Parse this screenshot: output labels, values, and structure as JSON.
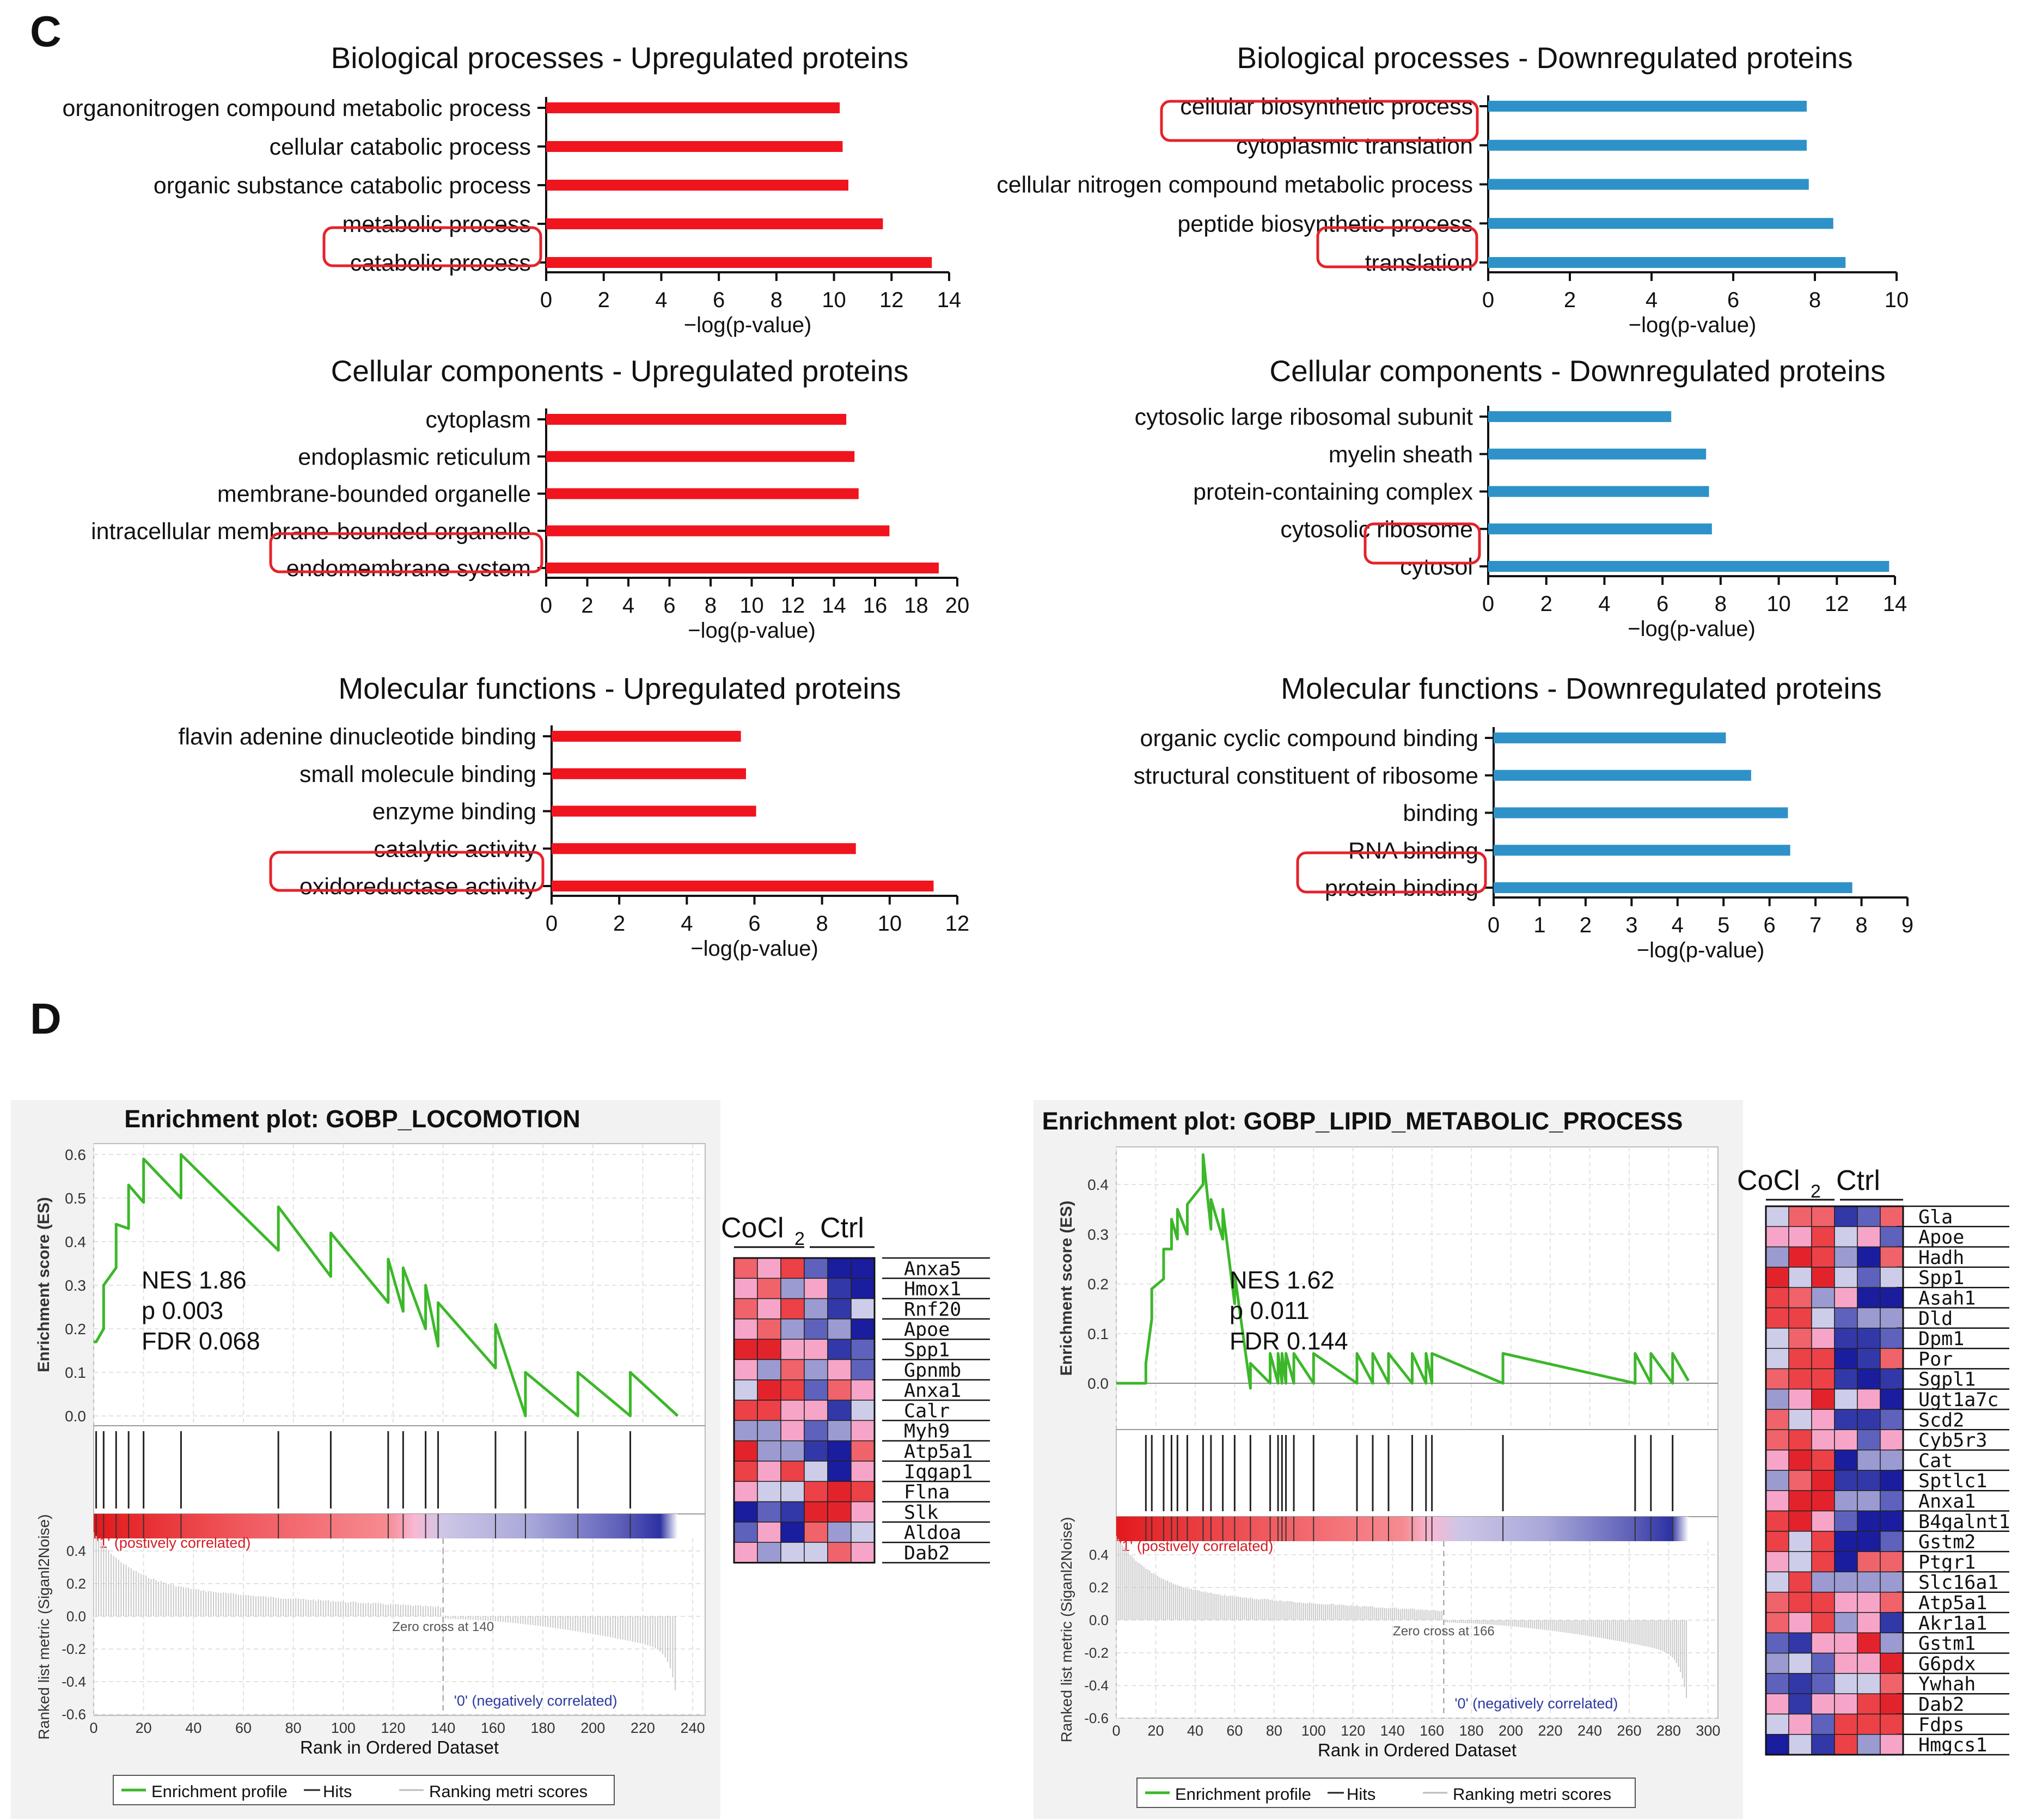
{
  "panels": {
    "C": "C",
    "D": "D"
  },
  "colors": {
    "up": "#f0141e",
    "down": "#2e92c9",
    "circle": "#e5222a",
    "green": "#3cb72a",
    "heat_red": "#e3232b",
    "heat_blue": "#1a1d9e"
  },
  "chart_data": [
    {
      "type": "bar",
      "orientation": "horizontal",
      "title": "Biological processes - Upregulated proteins",
      "xlabel": "−log(p-value)",
      "xlim": [
        0,
        14
      ],
      "ticks": [
        0,
        2,
        4,
        6,
        8,
        10,
        12,
        14
      ],
      "categories": [
        "organonitrogen compound metabolic process",
        "cellular catabolic process",
        "organic substance catabolic process",
        "metabolic process",
        "catabolic process"
      ],
      "values": [
        10.2,
        10.3,
        10.5,
        11.7,
        13.4
      ],
      "highlighted": [
        4
      ]
    },
    {
      "type": "bar",
      "orientation": "horizontal",
      "title": "Biological processes - Downregulated proteins",
      "xlabel": "−log(p-value)",
      "xlim": [
        0,
        10
      ],
      "ticks": [
        0,
        2,
        4,
        6,
        8,
        10
      ],
      "categories": [
        "cellular biosynthetic process",
        "cytoplasmic translation",
        "cellular nitrogen compound metabolic process",
        "peptide biosynthetic process",
        "translation"
      ],
      "values": [
        7.8,
        7.8,
        7.85,
        8.45,
        8.75
      ],
      "highlighted": [
        0,
        4
      ]
    },
    {
      "type": "bar",
      "orientation": "horizontal",
      "title": "Cellular components - Upregulated proteins",
      "xlabel": "−log(p-value)",
      "xlim": [
        0,
        20
      ],
      "ticks": [
        0,
        2,
        4,
        6,
        8,
        10,
        12,
        14,
        16,
        18,
        20
      ],
      "categories": [
        "cytoplasm",
        "endoplasmic reticulum",
        "membrane-bounded organelle",
        "intracellular membrane-bounded organelle",
        "endomembrane system"
      ],
      "values": [
        14.6,
        15.0,
        15.2,
        16.7,
        19.1
      ],
      "highlighted": [
        4
      ]
    },
    {
      "type": "bar",
      "orientation": "horizontal",
      "title": "Cellular components - Downregulated proteins",
      "xlabel": "−log(p-value)",
      "xlim": [
        0,
        14
      ],
      "ticks": [
        0,
        2,
        4,
        6,
        8,
        10,
        12,
        14
      ],
      "categories": [
        "cytosolic large ribosomal subunit",
        "myelin sheath",
        "protein-containing complex",
        "cytosolic ribosome",
        "cytosol"
      ],
      "values": [
        6.3,
        7.5,
        7.6,
        7.7,
        13.8
      ],
      "highlighted": [
        4
      ]
    },
    {
      "type": "bar",
      "orientation": "horizontal",
      "title": "Molecular functions - Upregulated proteins",
      "xlabel": "−log(p-value)",
      "xlim": [
        0,
        12
      ],
      "ticks": [
        0,
        2,
        4,
        6,
        8,
        10,
        12
      ],
      "categories": [
        "flavin adenine dinucleotide binding",
        "small molecule binding",
        "enzyme binding",
        "catalytic activity",
        "oxidoreductase activity"
      ],
      "values": [
        5.6,
        5.75,
        6.05,
        9.0,
        11.3
      ],
      "highlighted": [
        4
      ]
    },
    {
      "type": "bar",
      "orientation": "horizontal",
      "title": "Molecular functions - Downregulated proteins",
      "xlabel": "−log(p-value)",
      "xlim": [
        0,
        9
      ],
      "ticks": [
        0,
        1,
        2,
        3,
        4,
        5,
        6,
        7,
        8,
        9
      ],
      "categories": [
        "organic cyclic compound binding",
        "structural constituent of ribosome",
        "binding",
        "RNA binding",
        "protein binding"
      ],
      "values": [
        5.05,
        5.6,
        6.4,
        6.45,
        7.8
      ],
      "highlighted": [
        4
      ]
    },
    {
      "type": "line",
      "title": "Enrichment plot: GOBP_LOCOMOTION",
      "ylabel": "Enrichment score (ES)",
      "ylabel2": "Ranked list metric (Siganl2Noise)",
      "xlabel": "Rank in Ordered Dataset",
      "xlim": [
        0,
        245
      ],
      "x_ticks": [
        0,
        20,
        40,
        60,
        80,
        100,
        120,
        140,
        160,
        180,
        200,
        220,
        240
      ],
      "ylim": [
        -0.01,
        0.62
      ],
      "y_ticks": [
        "0.0",
        "0.1",
        "0.2",
        "0.3",
        "0.4",
        "0.5",
        "0.6"
      ],
      "ylim2": [
        -0.62,
        0.42
      ],
      "y2_ticks": [
        "0.4",
        "0.2",
        "0.0",
        "-0.2",
        "-0.4",
        "-0.6"
      ],
      "stats": [
        "NES 1.86",
        "p 0.003",
        "FDR 0.068"
      ],
      "hits": [
        1,
        4,
        9,
        14,
        20,
        35,
        74,
        95,
        118,
        124,
        133,
        138,
        161,
        173,
        194,
        215
      ],
      "es_peaks": [
        0.17,
        0.3,
        0.44,
        0.53,
        0.59,
        0.6,
        0.48,
        0.42,
        0.36,
        0.34,
        0.3,
        0.26,
        0.21,
        0.1
      ],
      "zero_cross": "Zero cross at 140",
      "zero_cross_x": 140,
      "n": 234,
      "pos_label": "'1' (postively correlated)",
      "neg_label": "'0' (negatively correlated)",
      "legend": [
        "Enrichment profile",
        "Hits",
        "Ranking metri scores"
      ]
    },
    {
      "type": "line",
      "title": "Enrichment plot: GOBP_LIPID_METABOLIC_PROCESS",
      "ylabel": "Enrichment score (ES)",
      "ylabel2": "Ranked list metric (Siganl2Noise)",
      "xlabel": "Rank in Ordered Dataset",
      "xlim": [
        0,
        305
      ],
      "x_ticks": [
        0,
        20,
        40,
        60,
        80,
        100,
        120,
        140,
        160,
        180,
        200,
        220,
        240,
        260,
        280,
        300
      ],
      "ylim": [
        -0.02,
        0.47
      ],
      "y_ticks": [
        "0.0",
        "0.1",
        "0.2",
        "0.3",
        "0.4"
      ],
      "ylim2": [
        -0.62,
        0.42
      ],
      "y2_ticks": [
        "0.4",
        "0.2",
        "0.0",
        "-0.2",
        "-0.4",
        "-0.6"
      ],
      "stats": [
        "NES 1.62",
        "p 0.011",
        "FDR 0.144"
      ],
      "hits": [
        15,
        18,
        24,
        28,
        31,
        36,
        44,
        48,
        54,
        60,
        68,
        78,
        82,
        84,
        86,
        90,
        100,
        122,
        130,
        138,
        150,
        157,
        160,
        196,
        263,
        271,
        282
      ],
      "es_peaks": [
        0.04,
        0.19,
        0.27,
        0.33,
        0.35,
        0.36,
        0.46,
        0.37,
        0.35,
        0.22,
        0.04,
        0.06,
        0.06
      ],
      "zero_cross": "Zero cross at 166",
      "zero_cross_x": 166,
      "n": 290,
      "pos_label": "'1' (postively correlated)",
      "neg_label": "'0' (negatively correlated)",
      "legend": [
        "Enrichment profile",
        "Hits",
        "Ranking metri scores"
      ]
    }
  ],
  "heatmaps": [
    {
      "header": [
        "CoCl",
        "2",
        "Ctrl"
      ],
      "genes": [
        "Anxa5",
        "Hmox1",
        "Rnf20",
        "Apoe",
        "Spp1",
        "Gpnmb",
        "Anxa1",
        "Calr",
        "Myh9",
        "Atp5a1",
        "Iqgap1",
        "Flna",
        "Slk",
        "Aldoa",
        "Dab2"
      ]
    },
    {
      "header": [
        "CoCl",
        "2",
        "Ctrl"
      ],
      "genes": [
        "Gla",
        "Apoe",
        "Hadh",
        "Spp1",
        "Asah1",
        "Dld",
        "Dpm1",
        "Por",
        "Sgpl1",
        "Ugt1a7c",
        "Scd2",
        "Cyb5r3",
        "Cat",
        "Sptlc1",
        "Anxa1",
        "B4galnt1",
        "Gstm2",
        "Ptgr1",
        "Slc16a1",
        "Atp5a1",
        "Akr1a1",
        "Gstm1",
        "G6pdx",
        "Ywhah",
        "Dab2",
        "Fdps",
        "Hmgcs1"
      ]
    }
  ]
}
